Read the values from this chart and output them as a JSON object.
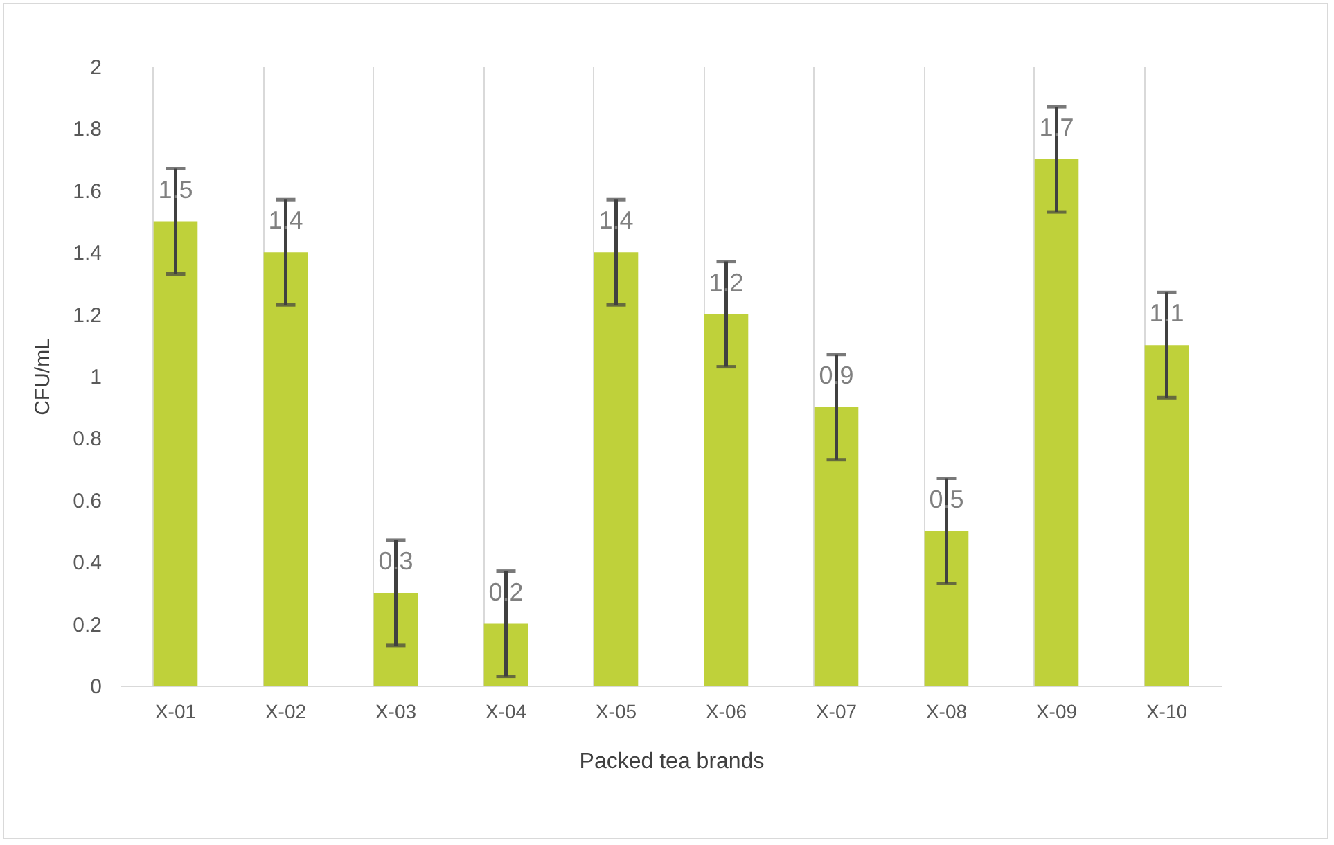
{
  "chart_data": {
    "type": "bar",
    "xlabel": "Packed tea brands",
    "ylabel": "CFU/mL",
    "categories": [
      "X-01",
      "X-02",
      "X-03",
      "X-04",
      "X-05",
      "X-06",
      "X-07",
      "X-08",
      "X-09",
      "X-10"
    ],
    "values": [
      1.5,
      1.4,
      0.3,
      0.2,
      1.4,
      1.2,
      0.9,
      0.5,
      1.7,
      1.1
    ],
    "errors": [
      0.17,
      0.17,
      0.17,
      0.17,
      0.17,
      0.17,
      0.17,
      0.17,
      0.17,
      0.17
    ],
    "color": "#bfd13a",
    "data_labels": true,
    "ylim": [
      0,
      2
    ],
    "yticks": [
      0,
      0.2,
      0.4,
      0.6,
      0.8,
      1,
      1.2,
      1.4,
      1.6,
      1.8,
      2
    ],
    "grid": "x"
  }
}
